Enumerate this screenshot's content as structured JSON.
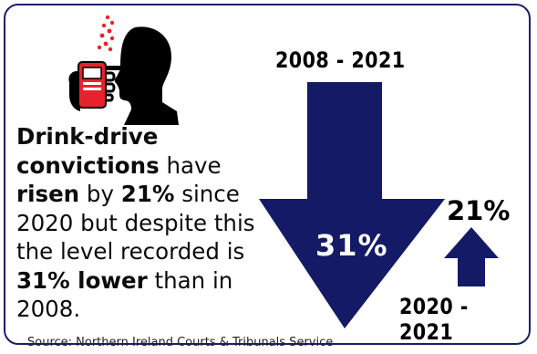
{
  "main_text": {
    "part1": "Drink-drive convictions",
    "part2": " have ",
    "part3": "risen",
    "part4": " by ",
    "part5": "21%",
    "part6": " since 2020 but despite this the level recorded is ",
    "part7": "31%",
    "part8": " lower",
    "part9": " than in 2008."
  },
  "long_term": {
    "period": "2008 - 2021",
    "change": "31%",
    "direction": "down"
  },
  "short_term": {
    "period": "2020 - 2021",
    "change": "21%",
    "direction": "up"
  },
  "source": "Source: Northern Ireland Courts & Tribunals Service",
  "colors": {
    "arrow": "#141a66",
    "accent": "#e8222d",
    "border": "#1a1f6b"
  },
  "icons": {
    "illustration": "breathalyser-person-icon"
  }
}
